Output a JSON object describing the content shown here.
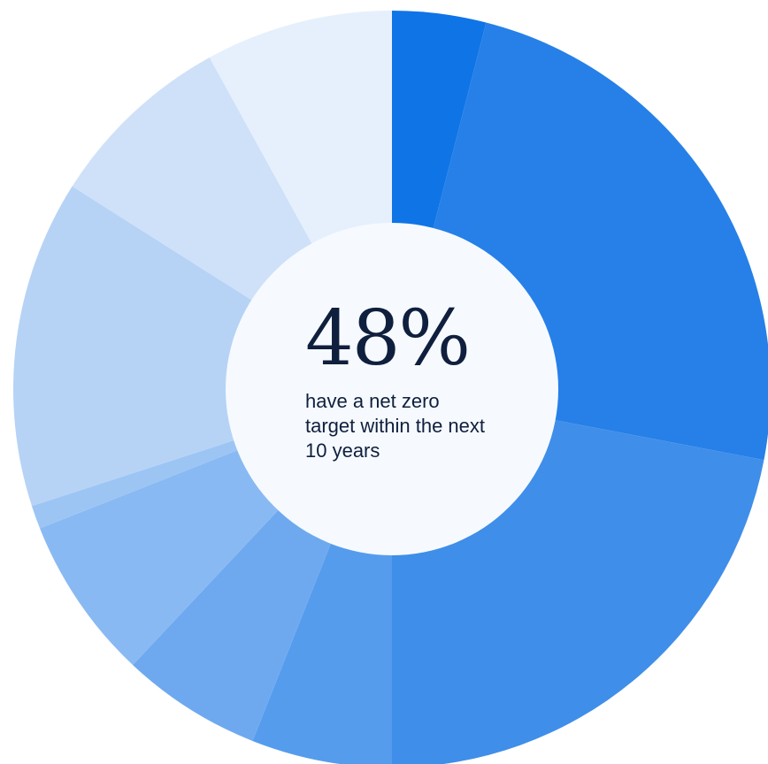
{
  "chart_data": {
    "type": "pie",
    "variant": "donut",
    "title": "",
    "center_value": "48%",
    "center_caption": "have a net zero target within the next 10 years",
    "values": [
      4,
      24,
      22,
      6,
      6,
      7,
      1,
      14,
      8,
      8
    ],
    "colors": [
      "#0f74e6",
      "#2680e8",
      "#3f8ee9",
      "#569ced",
      "#6ea9ef",
      "#89b9f2",
      "#9cc5f4",
      "#b6d3f6",
      "#cfe1f9",
      "#e6f0fd"
    ],
    "hole_color": "#f6faff"
  }
}
